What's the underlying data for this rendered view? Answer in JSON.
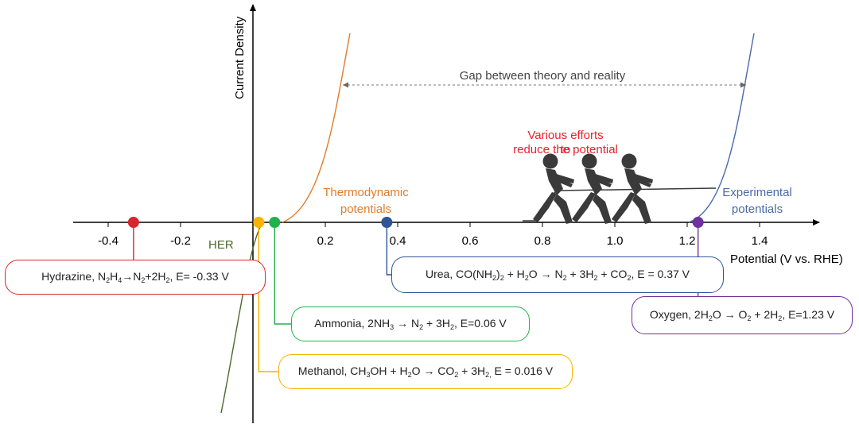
{
  "axes": {
    "y_label": "Current Density",
    "x_label": "Potential (V vs. RHE)",
    "x_ticks": [
      -0.4,
      -0.2,
      0.2,
      0.4,
      0.6,
      0.8,
      1.0,
      1.2,
      1.4
    ],
    "x_tick_labels": [
      "-0.4",
      "-0.2",
      "0.2",
      "0.4",
      "0.6",
      "0.8",
      "1.0",
      "1.2",
      "1.4"
    ]
  },
  "annotations": {
    "her": "HER",
    "thermo_line1": "Thermodynamic",
    "thermo_line2": "potentials",
    "experimental_line1": "Experimental",
    "experimental_line2": "potentials",
    "gap": "Gap between theory and reality",
    "efforts_line1": "Various efforts",
    "efforts_line2": "to",
    "efforts_line3": "reduce the potential"
  },
  "reactions": [
    {
      "id": "hydrazine",
      "potential": -0.33,
      "color": "#d9262c",
      "label_parts": [
        "Hydrazine, N",
        "2",
        "H",
        "4",
        "→N",
        "2",
        "+2H",
        "2",
        ", E= -0.33 V"
      ]
    },
    {
      "id": "methanol",
      "potential": 0.016,
      "color": "#f5b400",
      "label_parts": [
        "Methanol, CH",
        "3",
        "OH + H",
        "2",
        "O → CO",
        "2",
        " + 3H",
        "2,",
        " E = 0.016 V"
      ]
    },
    {
      "id": "ammonia",
      "potential": 0.06,
      "color": "#22b14c",
      "label_parts": [
        "Ammonia, 2NH",
        "3",
        " → N",
        "2",
        " + 3H",
        "2",
        ", E=0.06 V"
      ]
    },
    {
      "id": "urea",
      "potential": 0.37,
      "color": "#2f5597",
      "label_parts": [
        "Urea, CO(NH",
        "2",
        ")",
        "2",
        " + H",
        "2",
        "O → N",
        "2",
        " + 3H",
        "2",
        " + CO",
        "2",
        ", E = 0.37 V"
      ]
    },
    {
      "id": "oxygen",
      "potential": 1.23,
      "color": "#7030a0",
      "label_parts": [
        "Oxygen, 2H",
        "2",
        "O → O",
        "2",
        " + 2H",
        "2",
        ", E=1.23 V"
      ]
    }
  ],
  "colors": {
    "her_curve": "#4a6b2a",
    "thermo_curve": "#e07b2a",
    "experimental_curve": "#4a6aa8",
    "efforts_text": "#e8232a",
    "gap_arrow": "#888888",
    "figures": "#3a3a3a"
  }
}
